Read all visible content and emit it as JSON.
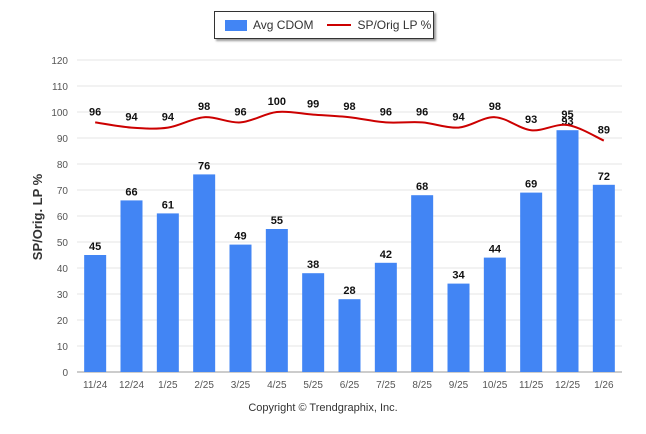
{
  "chart_data": {
    "type": "bar",
    "categories": [
      "11/24",
      "12/24",
      "1/25",
      "2/25",
      "3/25",
      "4/25",
      "5/25",
      "6/25",
      "7/25",
      "8/25",
      "9/25",
      "10/25",
      "11/25",
      "12/25",
      "1/26"
    ],
    "series": [
      {
        "name": "Avg CDOM",
        "kind": "bar",
        "color": "#4285f4",
        "values": [
          45,
          66,
          61,
          76,
          49,
          55,
          38,
          28,
          42,
          68,
          34,
          44,
          69,
          93,
          72
        ]
      },
      {
        "name": "SP/Orig LP %",
        "kind": "line",
        "color": "#cc0000",
        "values": [
          96,
          94,
          94,
          98,
          96,
          100,
          99,
          98,
          96,
          96,
          94,
          98,
          93,
          95,
          89
        ]
      }
    ],
    "ylabel": "SP/Orig. LP %",
    "ylim": [
      0,
      120
    ],
    "yticks": [
      0,
      10,
      20,
      30,
      40,
      50,
      60,
      70,
      80,
      90,
      100,
      110,
      120
    ],
    "grid": true,
    "legend_position": "top-center"
  },
  "copyright": "Copyright © Trendgraphix, Inc."
}
